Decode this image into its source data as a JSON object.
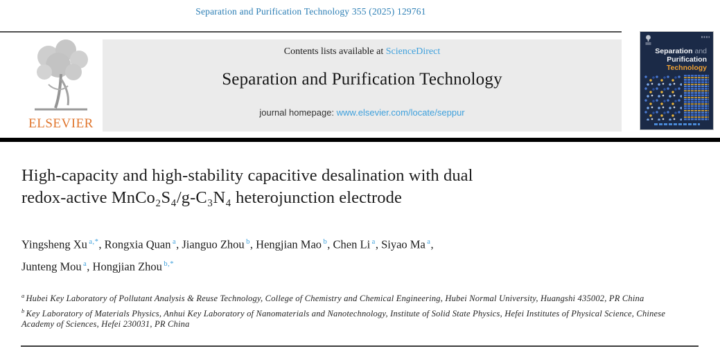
{
  "journal_ref": "Separation and Purification Technology 355 (2025) 129761",
  "header": {
    "contents_prefix": "Contents lists available at ",
    "sciencedirect_link": "ScienceDirect",
    "journal_title": "Separation and Purification Technology",
    "homepage_prefix": "journal homepage: ",
    "homepage_url": "www.elsevier.com/locate/seppur",
    "elsevier_word": "ELSEVIER"
  },
  "cover": {
    "title_part1": "Separation",
    "title_part1_and": " and",
    "title_part2": "Purification",
    "title_part3": "Technology",
    "colors": {
      "background_navy": "#1b2a47",
      "accent_orange": "#f0a032",
      "accent_blue": "#4a79d0",
      "accent_yellow": "#e8b23a"
    }
  },
  "article": {
    "title_line1": "High-capacity and high-stability capacitive desalination with dual",
    "title_line2": "redox-active MnCo₂S₄/g-C₃N₄ heterojunction electrode"
  },
  "authors": {
    "list": [
      {
        "name": "Yingsheng Xu",
        "sup": "a,*"
      },
      {
        "name": "Rongxia Quan",
        "sup": "a"
      },
      {
        "name": "Jianguo Zhou",
        "sup": "b"
      },
      {
        "name": "Hengjian Mao",
        "sup": "b"
      },
      {
        "name": "Chen Li",
        "sup": "a"
      },
      {
        "name": "Siyao Ma",
        "sup": "a",
        "break_after": true
      },
      {
        "name": "Junteng Mou",
        "sup": "a"
      },
      {
        "name": "Hongjian Zhou",
        "sup": "b,*"
      }
    ]
  },
  "affiliations": [
    {
      "sup": "a",
      "text": "Hubei Key Laboratory of Pollutant Analysis & Reuse Technology, College of Chemistry and Chemical Engineering, Hubei Normal University, Huangshi 435002, PR China"
    },
    {
      "sup": "b",
      "text": "Key Laboratory of Materials Physics, Anhui Key Laboratory of Nanomaterials and Nanotechnology, Institute of Solid State Physics, Hefei Institutes of Physical Science, Chinese Academy of Sciences, Hefei 230031, PR China"
    }
  ],
  "colors": {
    "top_ref_link": "#2d7fb5",
    "light_blue_link": "#3ea0dc",
    "elsevier_orange": "#e0762e",
    "band_gray": "#ebebeb"
  }
}
